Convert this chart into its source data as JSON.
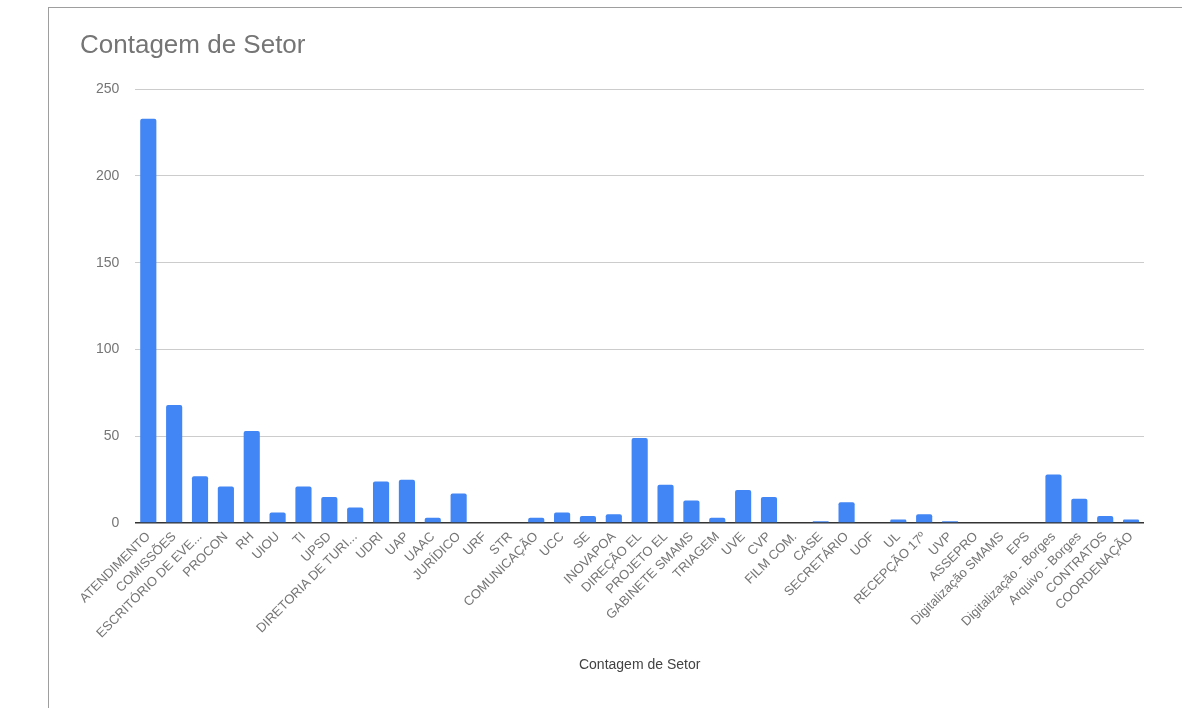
{
  "chart_data": {
    "type": "bar",
    "title": "Contagem de Setor",
    "xlabel": "Contagem de Setor",
    "categories": [
      "ATENDIMENTO",
      "COMISSÕES",
      "ESCRITÓRIO DE EVE...",
      "PROCON",
      "RH",
      "UIOU",
      "TI",
      "UPSD",
      "DIRETORIA DE TURI...",
      "UDRI",
      "UAP",
      "UAAC",
      "JURÍDICO",
      "URF",
      "STR",
      "COMUNICAÇÃO",
      "UCC",
      "SE",
      "INOVAPOA",
      "DIREÇÃO EL",
      "PROJETO EL",
      "GABINETE SMAMS",
      "TRIAGEM",
      "UVE",
      "CVP",
      "FILM COM.",
      "CASE",
      "SECRETÁRIO",
      "UOF",
      "UL",
      "RECEPÇÃO 17º",
      "UVP",
      "ASSEPRO",
      "Digitalização SMAMS",
      "EPS",
      "Digitalização - Borges",
      "Arquivo - Borges",
      "CONTRATOS",
      "COORDENAÇÃO"
    ],
    "values": [
      233,
      68,
      27,
      21,
      53,
      6,
      21,
      15,
      9,
      24,
      25,
      3,
      17,
      0,
      0,
      3,
      6,
      4,
      5,
      49,
      22,
      13,
      3,
      19,
      15,
      0,
      1,
      12,
      0,
      2,
      5,
      1,
      0,
      0,
      0,
      28,
      14,
      4,
      2
    ],
    "color": "#4285f4",
    "ylim": [
      0,
      250
    ],
    "yticks": [
      0,
      50,
      100,
      150,
      200,
      250
    ],
    "grid": "y",
    "legend": false
  }
}
